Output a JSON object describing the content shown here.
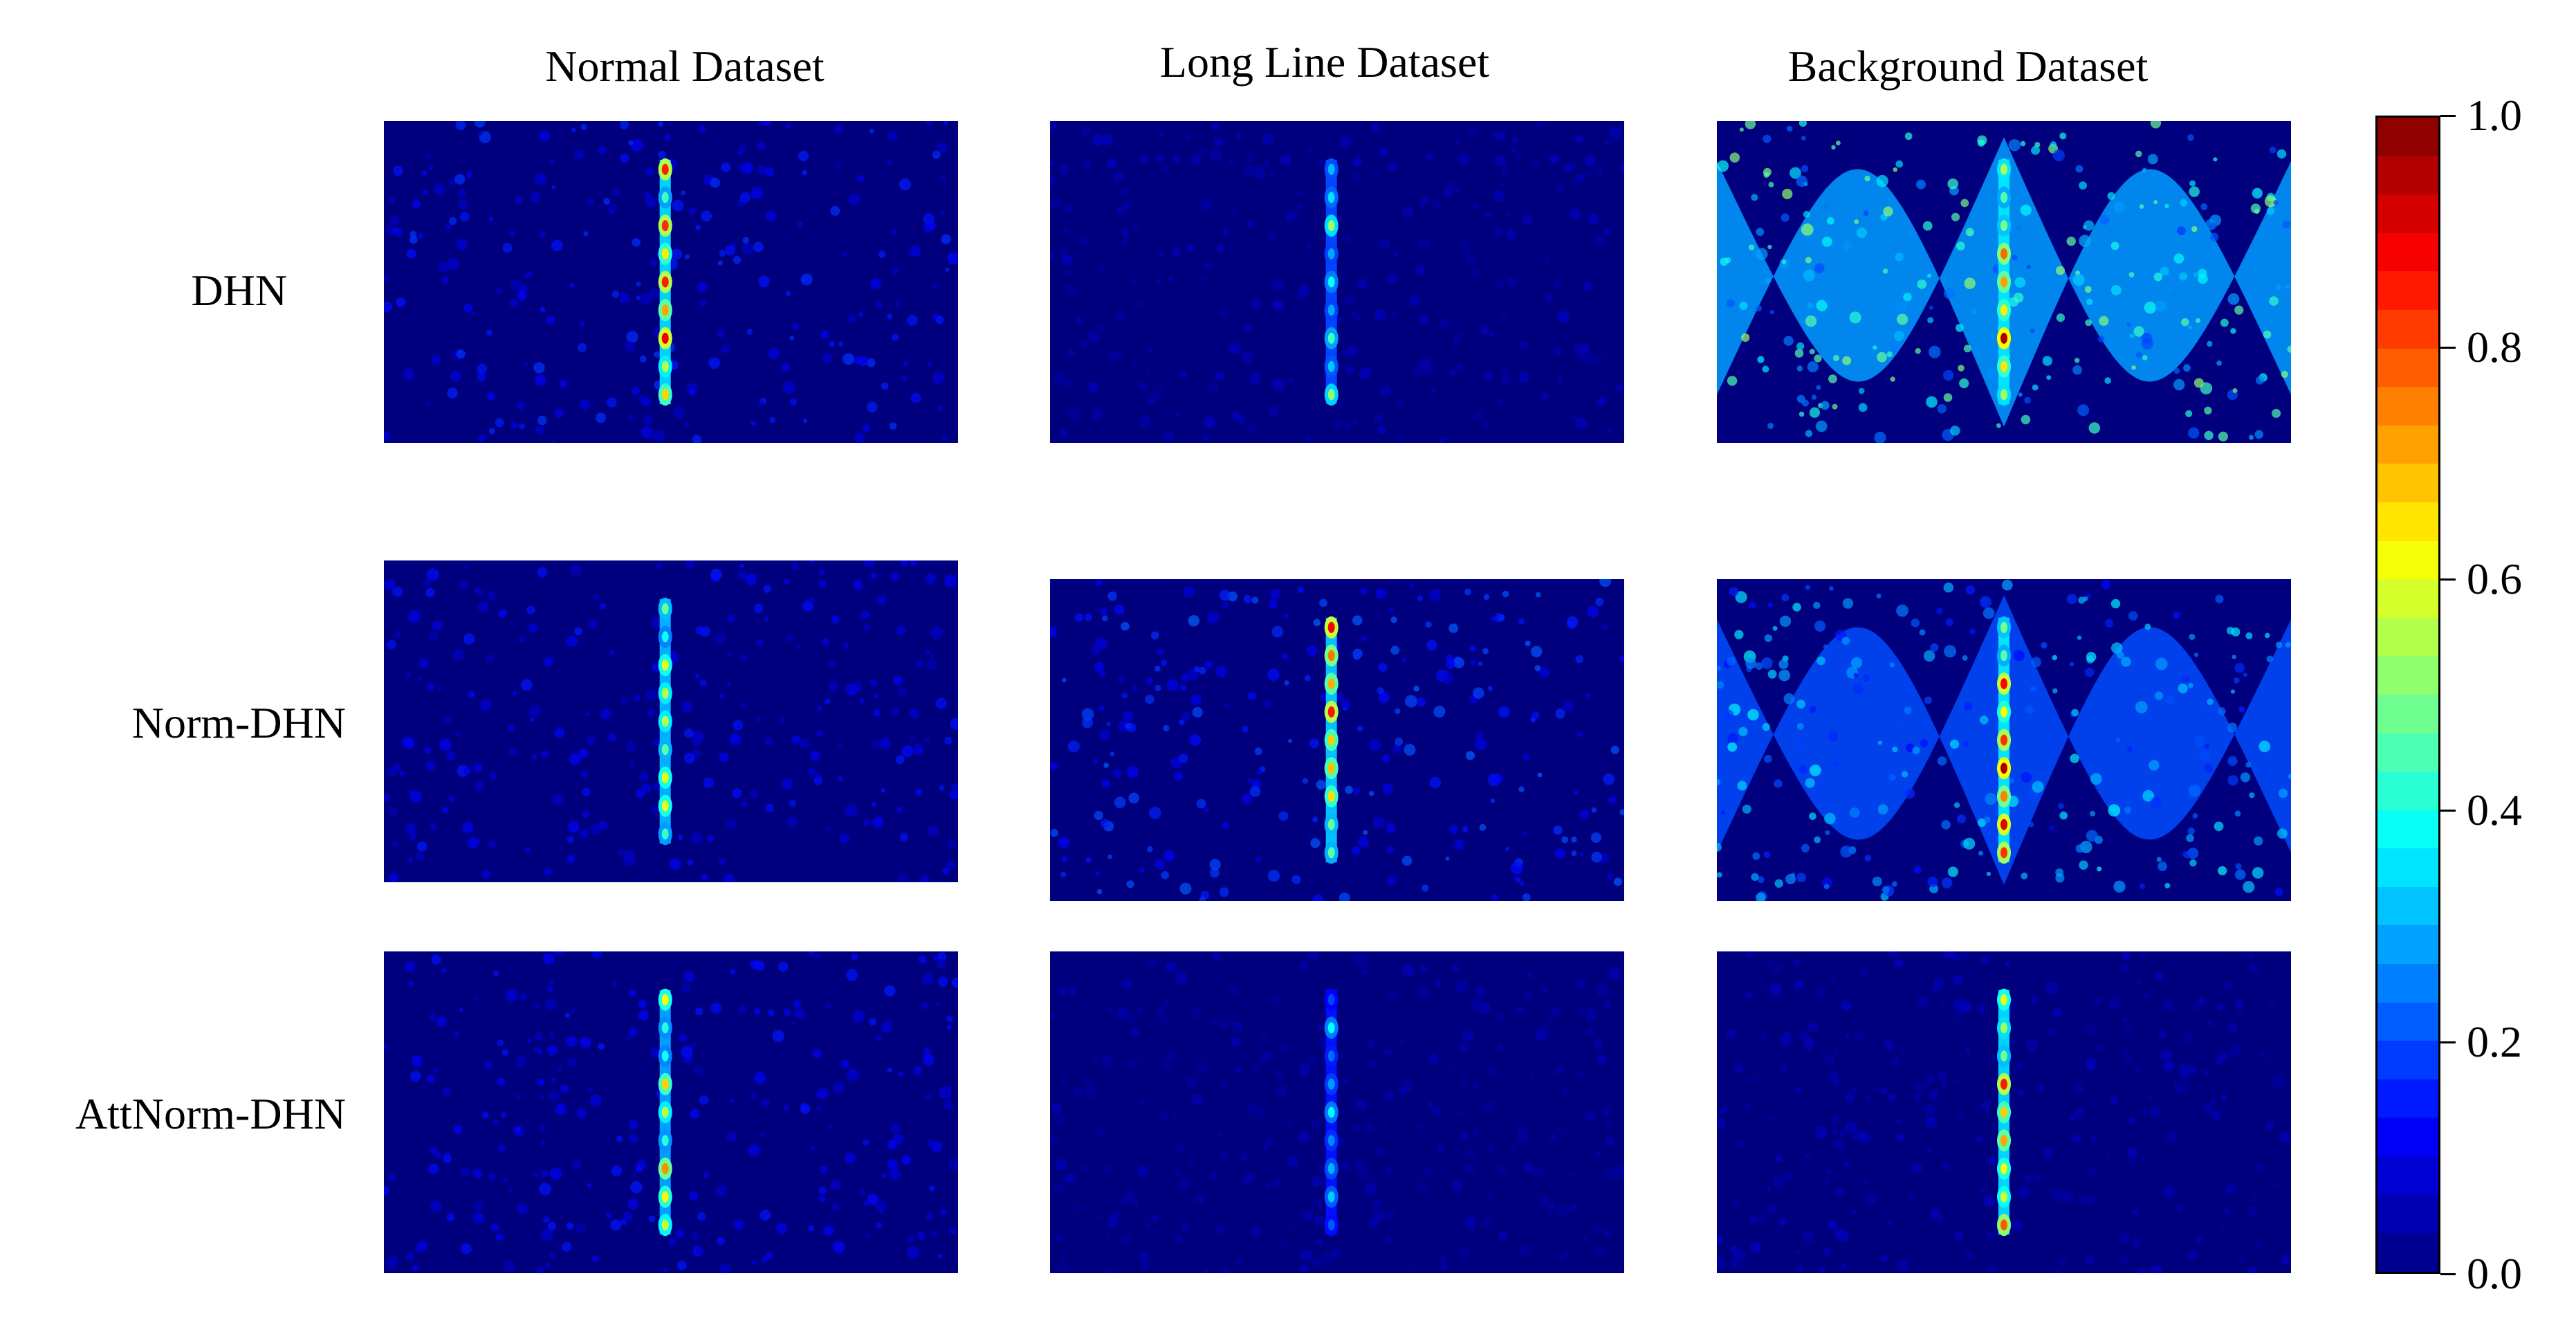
{
  "columns": [
    "Normal Dataset",
    "Long Line Dataset",
    "Background Dataset"
  ],
  "rows": [
    "DHN",
    "Norm-DHN",
    "AttNorm-DHN"
  ],
  "colorbar": {
    "min": 0.0,
    "max": 1.0,
    "ticks": [
      "0.0",
      "0.2",
      "0.4",
      "0.6",
      "0.8",
      "1.0"
    ],
    "tick_values": [
      0.0,
      0.2,
      0.4,
      0.6,
      0.8,
      1.0
    ],
    "colormap": "jet",
    "colors": [
      "#00007f",
      "#0000ff",
      "#007fff",
      "#00ffff",
      "#7fff7f",
      "#ffff00",
      "#ff7f00",
      "#ff0000",
      "#7f0000"
    ]
  },
  "chart_data": {
    "type": "heatmap",
    "grid": "3x3",
    "panels": [
      {
        "row": "DHN",
        "column": "Normal Dataset",
        "peak": 0.95,
        "background": 0.12,
        "peak_line_x": 0.49
      },
      {
        "row": "DHN",
        "column": "Long Line Dataset",
        "peak": 0.55,
        "background": 0.05,
        "peak_line_x": 0.49
      },
      {
        "row": "DHN",
        "column": "Background Dataset",
        "peak": 1.0,
        "background": 0.35,
        "peak_line_x": 0.5
      },
      {
        "row": "Norm-DHN",
        "column": "Normal Dataset",
        "peak": 0.85,
        "background": 0.1,
        "peak_line_x": 0.49
      },
      {
        "row": "Norm-DHN",
        "column": "Long Line Dataset",
        "peak": 0.9,
        "background": 0.15,
        "peak_line_x": 0.49
      },
      {
        "row": "Norm-DHN",
        "column": "Background Dataset",
        "peak": 1.0,
        "background": 0.25,
        "peak_line_x": 0.5
      },
      {
        "row": "AttNorm-DHN",
        "column": "Normal Dataset",
        "peak": 0.8,
        "background": 0.1,
        "peak_line_x": 0.49
      },
      {
        "row": "AttNorm-DHN",
        "column": "Long Line Dataset",
        "peak": 0.4,
        "background": 0.04,
        "peak_line_x": 0.49
      },
      {
        "row": "AttNorm-DHN",
        "column": "Background Dataset",
        "peak": 0.95,
        "background": 0.05,
        "peak_line_x": 0.5
      }
    ]
  }
}
